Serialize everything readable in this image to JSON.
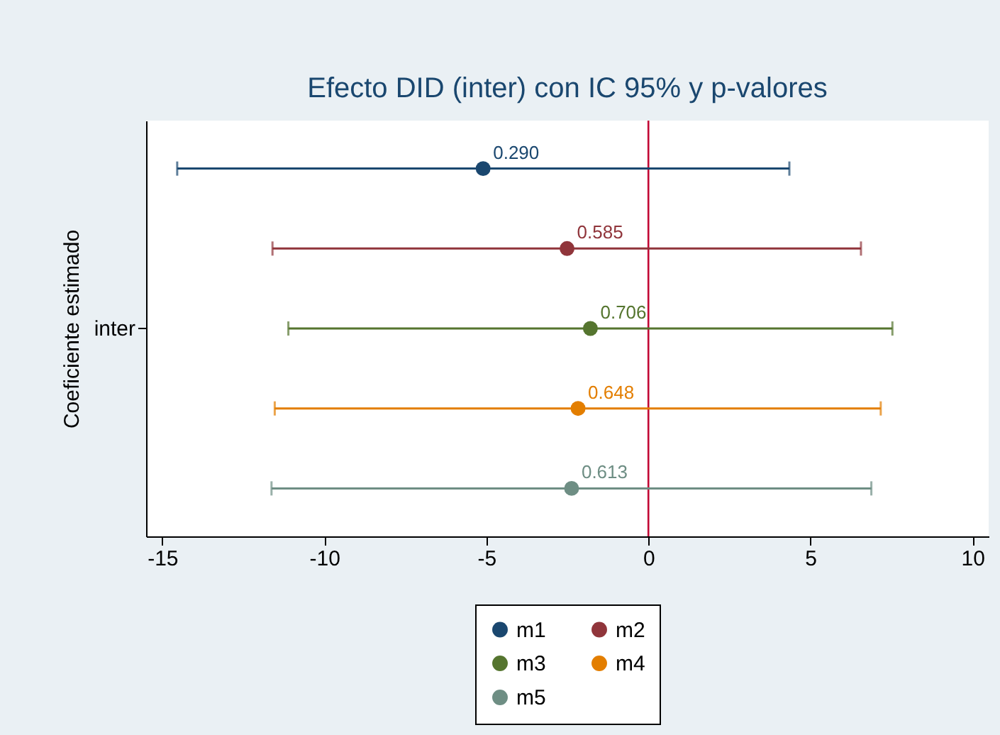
{
  "chart_data": {
    "type": "scatter",
    "title": "Efecto DID (inter) con IC 95% y p-valores",
    "ylabel": "Coeficiente estimado",
    "orientation": "horizontal",
    "categories": [
      null,
      null,
      "inter",
      null,
      null
    ],
    "xlim": [
      -15.5,
      10.5
    ],
    "xticks": [
      -15,
      -10,
      -5,
      0,
      5,
      10
    ],
    "grid": false,
    "legend": "bottom",
    "marker": "circle",
    "ref_lines": [
      {
        "axis": "x",
        "value": 0,
        "color": "#c10534"
      }
    ],
    "annotations": [
      "0.290",
      "0.585",
      "0.706",
      "0.648",
      "0.613"
    ],
    "series": [
      {
        "name": "m1",
        "color": "#1a476f",
        "values": [
          -5.1,
          null,
          null,
          null,
          null
        ],
        "errors": [
          [
            -14.54,
            4.35
          ],
          null,
          null,
          null,
          null
        ]
      },
      {
        "name": "m2",
        "color": "#90353b",
        "values": [
          null,
          -2.51,
          null,
          null,
          null
        ],
        "errors": [
          null,
          [
            -11.6,
            6.56
          ],
          null,
          null,
          null
        ]
      },
      {
        "name": "m3",
        "color": "#55752f",
        "values": [
          null,
          null,
          -1.79,
          null,
          null
        ],
        "errors": [
          null,
          null,
          [
            -11.11,
            7.53
          ],
          null,
          null
        ]
      },
      {
        "name": "m4",
        "color": "#e37e00",
        "values": [
          null,
          null,
          null,
          -2.17,
          null
        ],
        "errors": [
          null,
          null,
          null,
          [
            -11.53,
            7.17
          ],
          null
        ]
      },
      {
        "name": "m5",
        "color": "#6e8e84",
        "values": [
          null,
          null,
          null,
          null,
          -2.37
        ],
        "errors": [
          null,
          null,
          null,
          null,
          [
            -11.63,
            6.88
          ]
        ]
      }
    ]
  }
}
